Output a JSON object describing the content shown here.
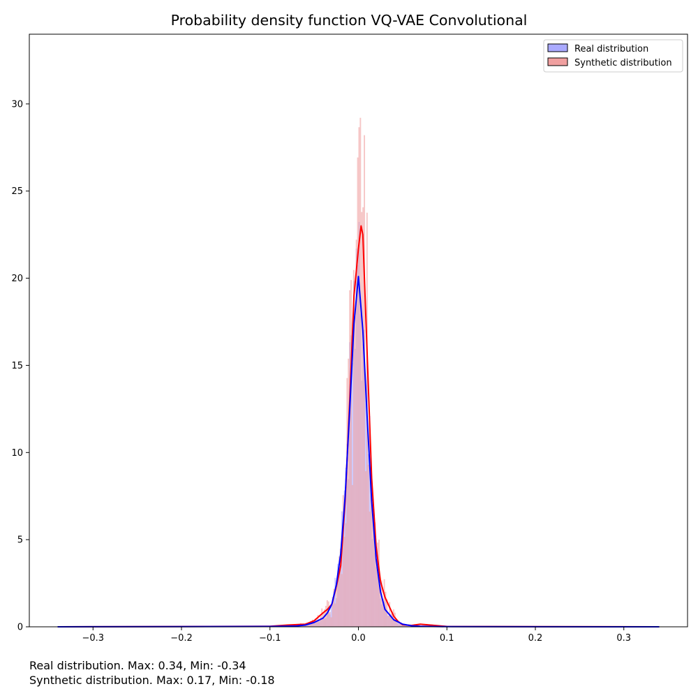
{
  "chart_data": {
    "type": "histogram",
    "title": "Probability density function VQ-VAE Convolutional",
    "xlabel": "",
    "ylabel": "",
    "xlim": [
      -0.372,
      0.372
    ],
    "ylim": [
      0,
      34
    ],
    "x_ticks": [
      -0.3,
      -0.2,
      -0.1,
      0.0,
      0.1,
      0.2,
      0.3
    ],
    "x_tick_labels": [
      "−0.3",
      "−0.2",
      "−0.1",
      "0.0",
      "0.1",
      "0.2",
      "0.3"
    ],
    "y_ticks": [
      0,
      5,
      10,
      15,
      20,
      25,
      30
    ],
    "y_tick_labels": [
      "0",
      "5",
      "10",
      "15",
      "20",
      "25",
      "30"
    ],
    "grid": false,
    "legend_position": "top-right",
    "series": [
      {
        "name": "Real distribution",
        "fill_color": "#aaaaff",
        "line_color": "#0000ff",
        "kde_x": [
          -0.34,
          -0.1,
          -0.07,
          -0.06,
          -0.05,
          -0.04,
          -0.035,
          -0.03,
          -0.025,
          -0.02,
          -0.015,
          -0.01,
          -0.005,
          0.0,
          0.005,
          0.01,
          0.015,
          0.02,
          0.025,
          0.03,
          0.04,
          0.05,
          0.06,
          0.07,
          0.1,
          0.34
        ],
        "kde_y": [
          0.0,
          0.02,
          0.05,
          0.1,
          0.25,
          0.5,
          0.8,
          1.3,
          2.4,
          4.2,
          7.5,
          12.3,
          17.4,
          20.1,
          17.0,
          11.9,
          7.2,
          3.9,
          2.0,
          1.0,
          0.4,
          0.15,
          0.06,
          0.03,
          0.01,
          0.0
        ]
      },
      {
        "name": "Synthetic distribution",
        "fill_color": "#f0a0a0",
        "line_color": "#ff0000",
        "kde_x": [
          -0.34,
          -0.1,
          -0.08,
          -0.06,
          -0.05,
          -0.04,
          -0.035,
          -0.03,
          -0.025,
          -0.02,
          -0.015,
          -0.01,
          -0.005,
          0.0,
          0.003,
          0.005,
          0.01,
          0.015,
          0.02,
          0.025,
          0.03,
          0.04,
          0.045,
          0.05,
          0.06,
          0.07,
          0.1,
          0.34
        ],
        "kde_y": [
          0.0,
          0.03,
          0.1,
          0.15,
          0.35,
          0.8,
          1.0,
          1.3,
          2.3,
          3.5,
          7.2,
          12.8,
          19.0,
          21.7,
          23.0,
          22.5,
          15.5,
          8.5,
          4.6,
          2.6,
          1.7,
          0.6,
          0.3,
          0.12,
          0.08,
          0.15,
          0.02,
          0.0
        ]
      }
    ],
    "annotations": [
      "Real distribution. Max: 0.34, Min: -0.34",
      "Synthetic distribution. Max: 0.17, Min: -0.18"
    ]
  }
}
